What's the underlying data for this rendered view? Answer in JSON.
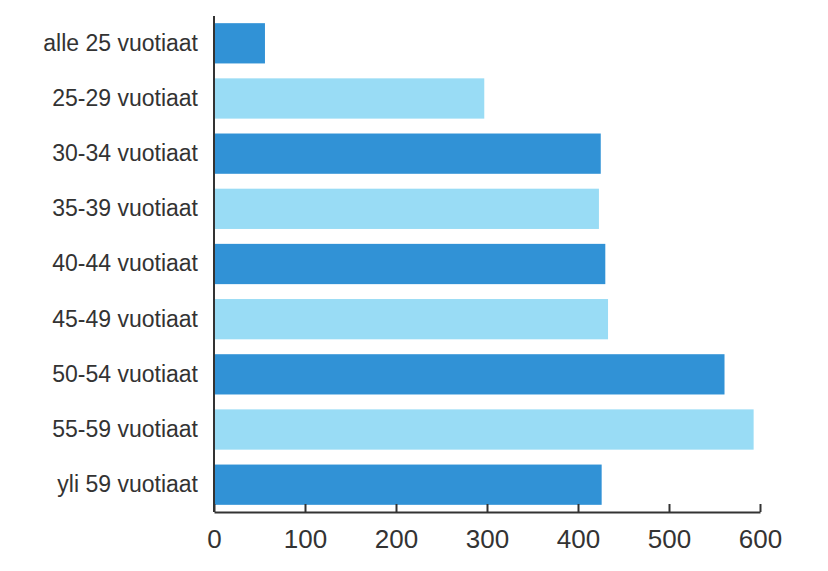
{
  "chart_data": {
    "type": "bar",
    "orientation": "horizontal",
    "categories": [
      "alle 25 vuotiaat",
      "25-29 vuotiaat",
      "30-34 vuotiaat",
      "35-39 vuotiaat",
      "40-44 vuotiaat",
      "45-49 vuotiaat",
      "50-54 vuotiaat",
      "55-59 vuotiaat",
      "yli 59 vuotiaat"
    ],
    "values": [
      56,
      297,
      425,
      423,
      430,
      433,
      561,
      593,
      426
    ],
    "colors": [
      "#3192d6",
      "#99dcf5",
      "#3192d6",
      "#99dcf5",
      "#3192d6",
      "#99dcf5",
      "#3192d6",
      "#99dcf5",
      "#3192d6"
    ],
    "xlim": [
      0,
      600
    ],
    "xticks": [
      0,
      100,
      200,
      300,
      400,
      500,
      600
    ],
    "grid": false
  }
}
